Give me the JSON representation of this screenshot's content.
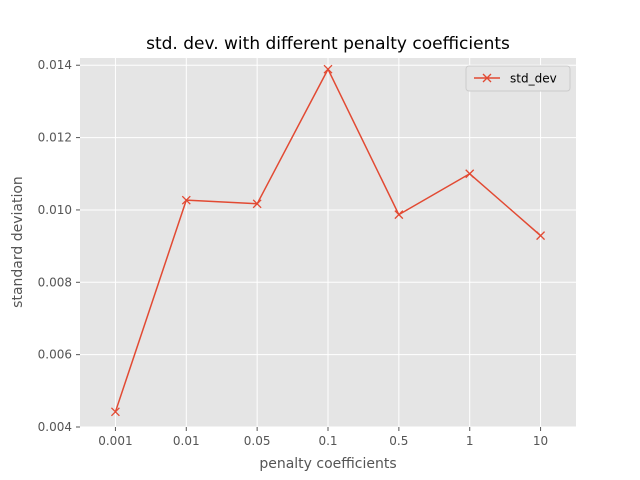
{
  "chart_data": {
    "type": "line",
    "title": "std. dev. with different penalty coefficients",
    "xlabel": "penalty coefficients",
    "ylabel": "standard deviation",
    "categories": [
      "0.001",
      "0.01",
      "0.05",
      "0.1",
      "0.5",
      "1",
      "10"
    ],
    "series": [
      {
        "name": "std_dev",
        "values": [
          0.00442,
          0.01027,
          0.01017,
          0.01389,
          0.00987,
          0.011,
          0.00929
        ],
        "color": "#E24A33",
        "marker": "x"
      }
    ],
    "ylim": [
      0.004,
      0.0142
    ],
    "yticks": [
      "0.004",
      "0.006",
      "0.008",
      "0.010",
      "0.012",
      "0.014"
    ],
    "grid": true,
    "legend_position": "top-right",
    "colors": {
      "plot_background": "#E5E5E5",
      "grid": "#FFFFFF",
      "tick_text": "#555555",
      "label_text": "#555555",
      "title_text": "#000000"
    }
  }
}
